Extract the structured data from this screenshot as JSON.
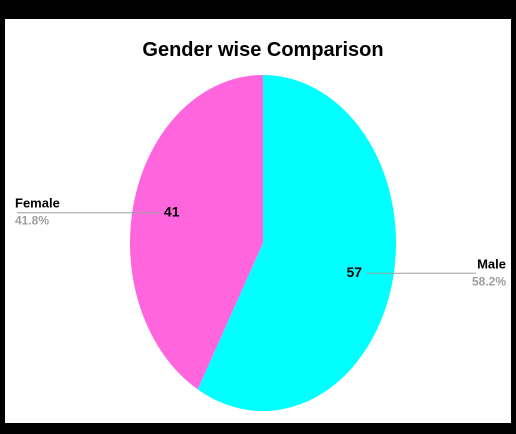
{
  "chart_data": {
    "type": "pie",
    "title": "Gender wise Comparison",
    "slices": [
      {
        "label": "Male",
        "value": 57,
        "percent": "58.2%",
        "color": "#00ffff"
      },
      {
        "label": "Female",
        "value": 41,
        "percent": "41.8%",
        "color": "#ff66dd"
      }
    ],
    "legend": "outside labels with leader lines"
  }
}
